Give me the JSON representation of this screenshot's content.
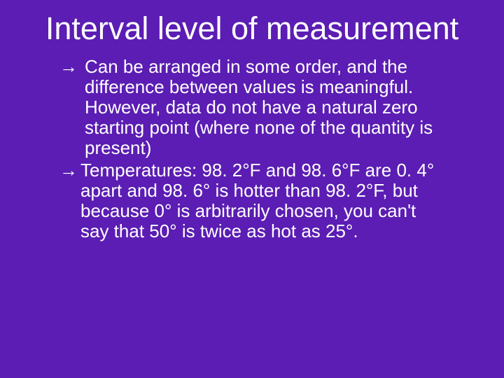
{
  "slide": {
    "background_color": "#5b1db3",
    "text_color": "#ffffff",
    "title": "Interval level of measurement",
    "title_fontsize": 45,
    "body_fontsize": 26,
    "font_family": "Segoe UI",
    "bullets": [
      {
        "arrow": "→",
        "arrow_spaced": true,
        "text": "Can be arranged in some order, and the difference between values is meaningful. However, data do not have a natural zero starting point (where none of the quantity is present)"
      },
      {
        "arrow": "→",
        "arrow_spaced": false,
        "text": "Temperatures: 98. 2°F and 98. 6°F are 0. 4° apart and 98. 6° is hotter than 98. 2°F, but because 0° is arbitrarily chosen, you can't say that 50° is twice as hot as 25°."
      }
    ]
  }
}
